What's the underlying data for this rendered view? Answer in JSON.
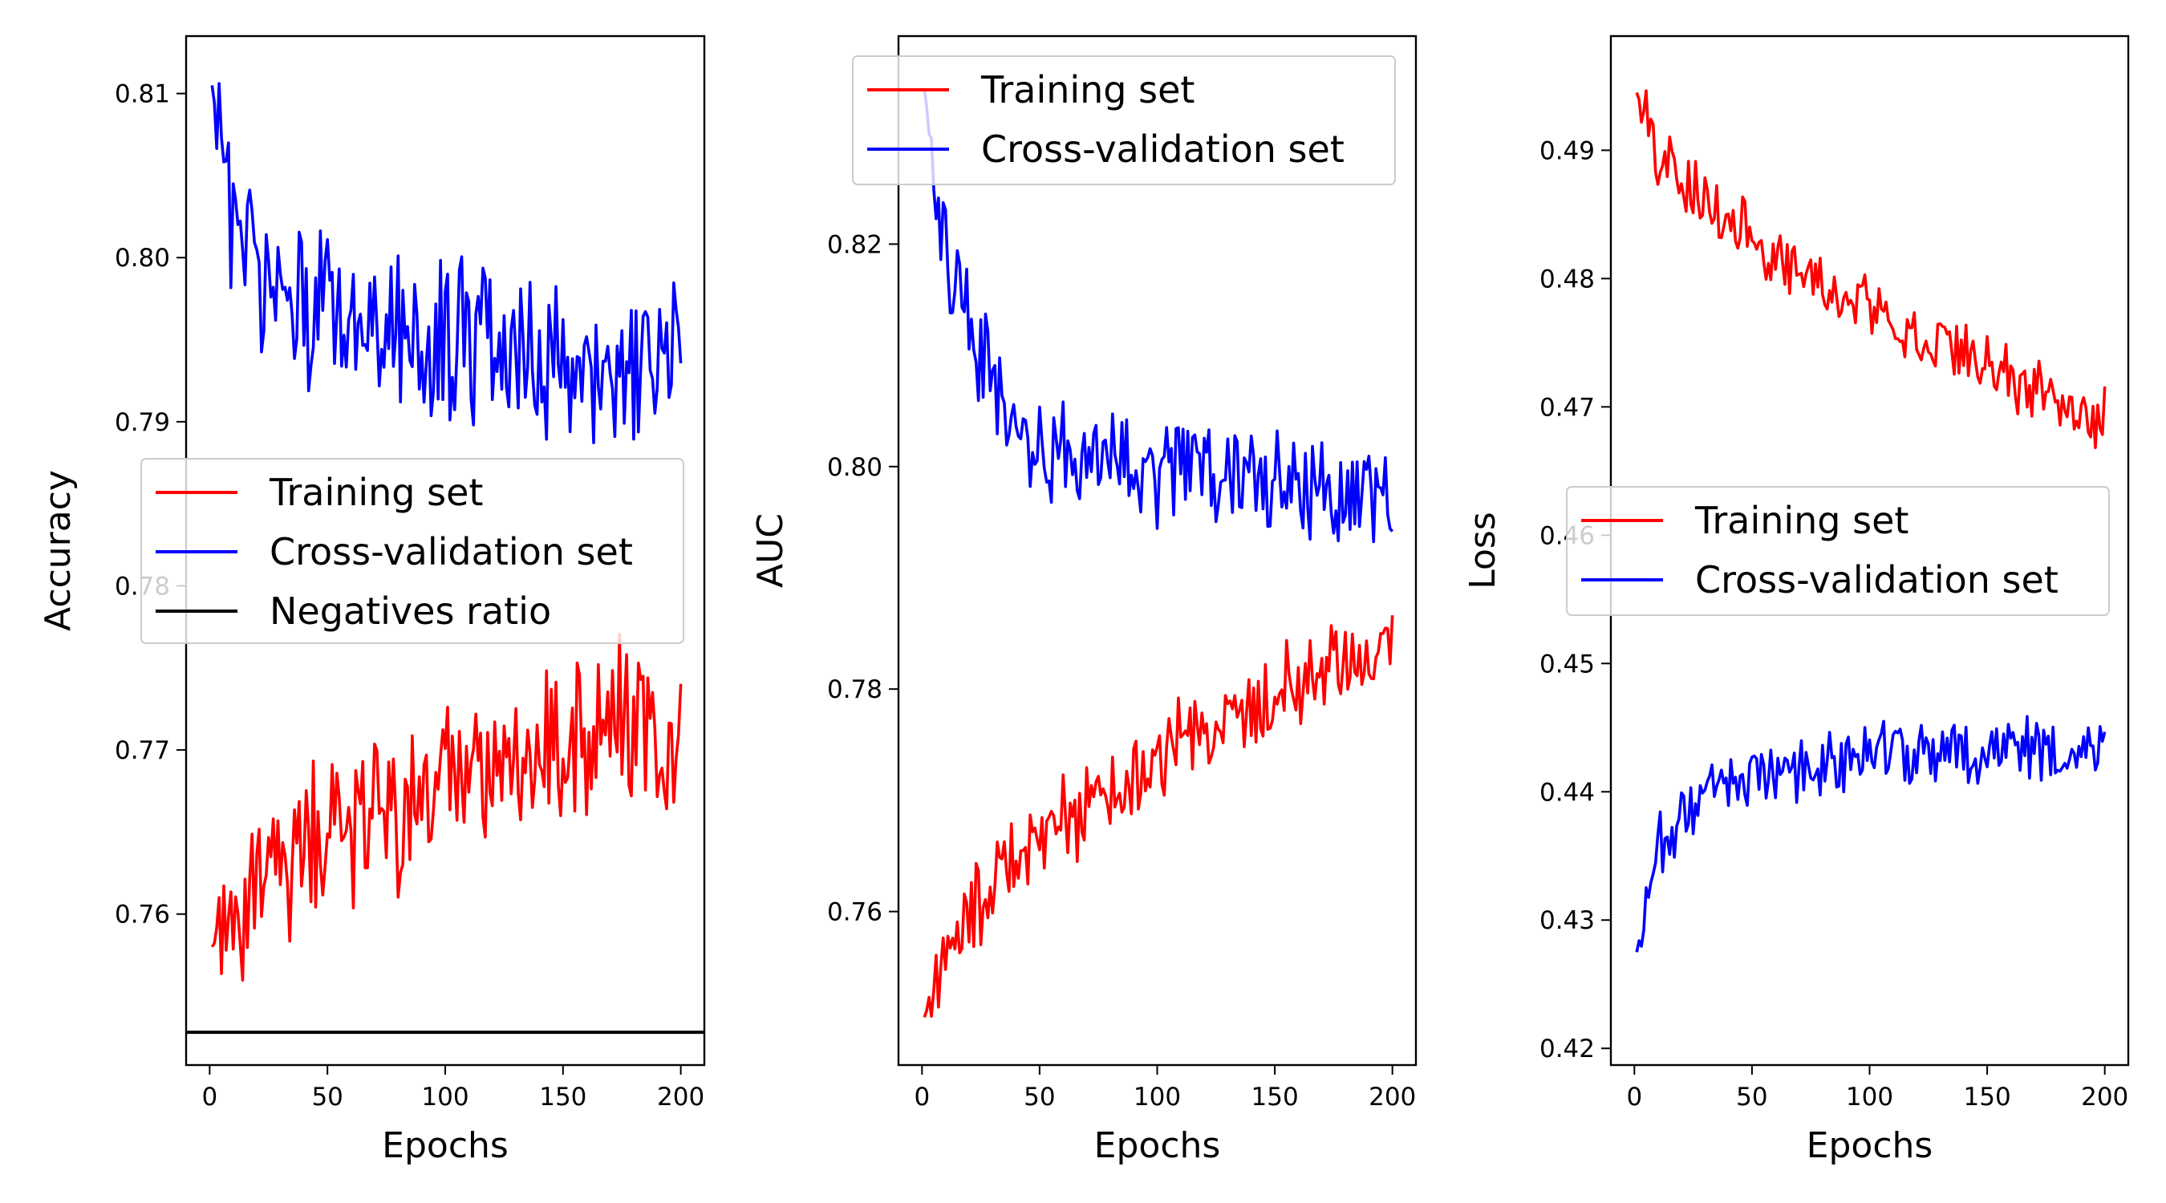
{
  "colors": {
    "training": "#ff0000",
    "validation": "#0000ff",
    "negatives": "#000000"
  },
  "chart_data": [
    {
      "type": "line",
      "xlabel": "Epochs",
      "ylabel": "Accuracy",
      "xlim": [
        -10,
        210
      ],
      "ylim": [
        0.7508,
        0.8135
      ],
      "xticks": [
        0,
        50,
        100,
        150,
        200
      ],
      "yticks": [
        0.76,
        0.77,
        0.78,
        0.79,
        0.8,
        0.81
      ],
      "grid": false,
      "legend": {
        "placement": "center-left",
        "entries": [
          "Training set",
          "Cross-validation set",
          "Negatives ratio"
        ]
      },
      "hline": {
        "name": "Negatives ratio",
        "y": 0.7528
      },
      "x": [
        1,
        10,
        20,
        30,
        40,
        50,
        60,
        70,
        80,
        90,
        100,
        110,
        120,
        130,
        140,
        150,
        160,
        170,
        180,
        190,
        200
      ],
      "series": [
        {
          "name": "Training set",
          "values": [
            0.758,
            0.76,
            0.762,
            0.763,
            0.764,
            0.765,
            0.7655,
            0.766,
            0.7665,
            0.7675,
            0.768,
            0.7685,
            0.769,
            0.7695,
            0.77,
            0.7705,
            0.771,
            0.7715,
            0.7715,
            0.7715,
            0.771
          ]
        },
        {
          "name": "Cross-validation set",
          "values": [
            0.8105,
            0.801,
            0.7985,
            0.798,
            0.797,
            0.7965,
            0.796,
            0.796,
            0.7955,
            0.795,
            0.795,
            0.795,
            0.7945,
            0.794,
            0.794,
            0.794,
            0.7935,
            0.793,
            0.793,
            0.7935,
            0.7955
          ]
        }
      ]
    },
    {
      "type": "line",
      "xlabel": "Epochs",
      "ylabel": "AUC",
      "xlim": [
        -10,
        210
      ],
      "ylim": [
        0.7462,
        0.8387
      ],
      "xticks": [
        0,
        50,
        100,
        150,
        200
      ],
      "yticks": [
        0.76,
        0.78,
        0.8,
        0.82
      ],
      "grid": false,
      "legend": {
        "placement": "top",
        "entries": [
          "Training set",
          "Cross-validation set"
        ]
      },
      "x": [
        1,
        10,
        20,
        30,
        40,
        50,
        60,
        70,
        80,
        90,
        100,
        110,
        120,
        130,
        140,
        150,
        160,
        170,
        180,
        190,
        200
      ],
      "series": [
        {
          "name": "Training set",
          "values": [
            0.7505,
            0.756,
            0.7595,
            0.762,
            0.7645,
            0.7665,
            0.768,
            0.7695,
            0.771,
            0.7725,
            0.774,
            0.7755,
            0.7765,
            0.7775,
            0.7785,
            0.7795,
            0.7805,
            0.7815,
            0.782,
            0.7835,
            0.7845
          ]
        },
        {
          "name": "Cross-validation set",
          "values": [
            0.834,
            0.8185,
            0.813,
            0.808,
            0.803,
            0.802,
            0.801,
            0.8005,
            0.8,
            0.7995,
            0.7995,
            0.799,
            0.799,
            0.799,
            0.7985,
            0.7985,
            0.7985,
            0.798,
            0.798,
            0.798,
            0.7965
          ]
        }
      ]
    },
    {
      "type": "line",
      "xlabel": "Epochs",
      "ylabel": "Loss",
      "xlim": [
        -10,
        210
      ],
      "ylim": [
        0.4187,
        0.4989
      ],
      "xticks": [
        0,
        50,
        100,
        150,
        200
      ],
      "yticks": [
        0.42,
        0.43,
        0.44,
        0.45,
        0.46,
        0.47,
        0.48,
        0.49
      ],
      "grid": false,
      "legend": {
        "placement": "center-right",
        "entries": [
          "Training set",
          "Cross-validation set"
        ]
      },
      "x": [
        1,
        10,
        20,
        30,
        40,
        50,
        60,
        70,
        80,
        90,
        100,
        110,
        120,
        130,
        140,
        150,
        160,
        170,
        180,
        190,
        200
      ],
      "series": [
        {
          "name": "Training set",
          "values": [
            0.4945,
            0.4895,
            0.4875,
            0.486,
            0.4845,
            0.4832,
            0.482,
            0.481,
            0.48,
            0.479,
            0.478,
            0.477,
            0.476,
            0.475,
            0.4742,
            0.4732,
            0.4722,
            0.4712,
            0.4702,
            0.4695,
            0.469
          ]
        },
        {
          "name": "Cross-validation set",
          "values": [
            0.4275,
            0.4355,
            0.438,
            0.4395,
            0.4405,
            0.441,
            0.4415,
            0.442,
            0.442,
            0.4425,
            0.4425,
            0.443,
            0.443,
            0.443,
            0.443,
            0.4432,
            0.4432,
            0.4432,
            0.4435,
            0.4435,
            0.443
          ]
        }
      ]
    }
  ]
}
